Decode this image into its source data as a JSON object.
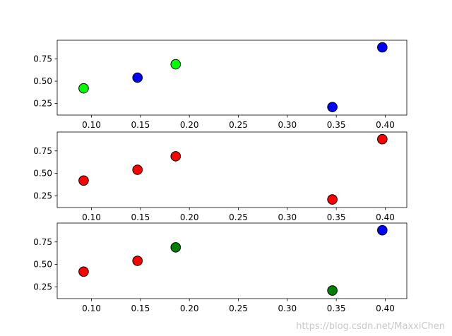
{
  "watermark": "https://blog.csdn.net/MaxxiChen",
  "chart_data": [
    {
      "type": "scatter",
      "x": [
        0.092,
        0.147,
        0.186,
        0.346,
        0.397
      ],
      "y": [
        0.42,
        0.54,
        0.69,
        0.21,
        0.88
      ],
      "colors": [
        "#00ff00",
        "#0000ff",
        "#00ff00",
        "#0000ff",
        "#0000ff"
      ],
      "xlim": [
        0.065,
        0.422
      ],
      "ylim": [
        0.12,
        0.96
      ],
      "xticks": [
        0.1,
        0.15,
        0.2,
        0.25,
        0.3,
        0.35,
        0.4
      ],
      "xtick_labels": [
        "0.10",
        "0.15",
        "0.20",
        "0.25",
        "0.30",
        "0.35",
        "0.40"
      ],
      "yticks": [
        0.25,
        0.5,
        0.75
      ],
      "ytick_labels": [
        "0.25",
        "0.50",
        "0.75"
      ]
    },
    {
      "type": "scatter",
      "x": [
        0.092,
        0.147,
        0.186,
        0.346,
        0.397
      ],
      "y": [
        0.42,
        0.54,
        0.69,
        0.21,
        0.88
      ],
      "colors": [
        "#ff0000",
        "#ff0000",
        "#ff0000",
        "#ff0000",
        "#ff0000"
      ],
      "xlim": [
        0.065,
        0.422
      ],
      "ylim": [
        0.12,
        0.96
      ],
      "xticks": [
        0.1,
        0.15,
        0.2,
        0.25,
        0.3,
        0.35,
        0.4
      ],
      "xtick_labels": [
        "0.10",
        "0.15",
        "0.20",
        "0.25",
        "0.30",
        "0.35",
        "0.40"
      ],
      "yticks": [
        0.25,
        0.5,
        0.75
      ],
      "ytick_labels": [
        "0.25",
        "0.50",
        "0.75"
      ]
    },
    {
      "type": "scatter",
      "x": [
        0.092,
        0.147,
        0.186,
        0.346,
        0.397
      ],
      "y": [
        0.42,
        0.54,
        0.69,
        0.21,
        0.88
      ],
      "colors": [
        "#ff0000",
        "#ff0000",
        "#008000",
        "#008000",
        "#0000ff"
      ],
      "xlim": [
        0.065,
        0.422
      ],
      "ylim": [
        0.12,
        0.96
      ],
      "xticks": [
        0.1,
        0.15,
        0.2,
        0.25,
        0.3,
        0.35,
        0.4
      ],
      "xtick_labels": [
        "0.10",
        "0.15",
        "0.20",
        "0.25",
        "0.30",
        "0.35",
        "0.40"
      ],
      "yticks": [
        0.25,
        0.5,
        0.75
      ],
      "ytick_labels": [
        "0.25",
        "0.50",
        "0.75"
      ]
    }
  ]
}
